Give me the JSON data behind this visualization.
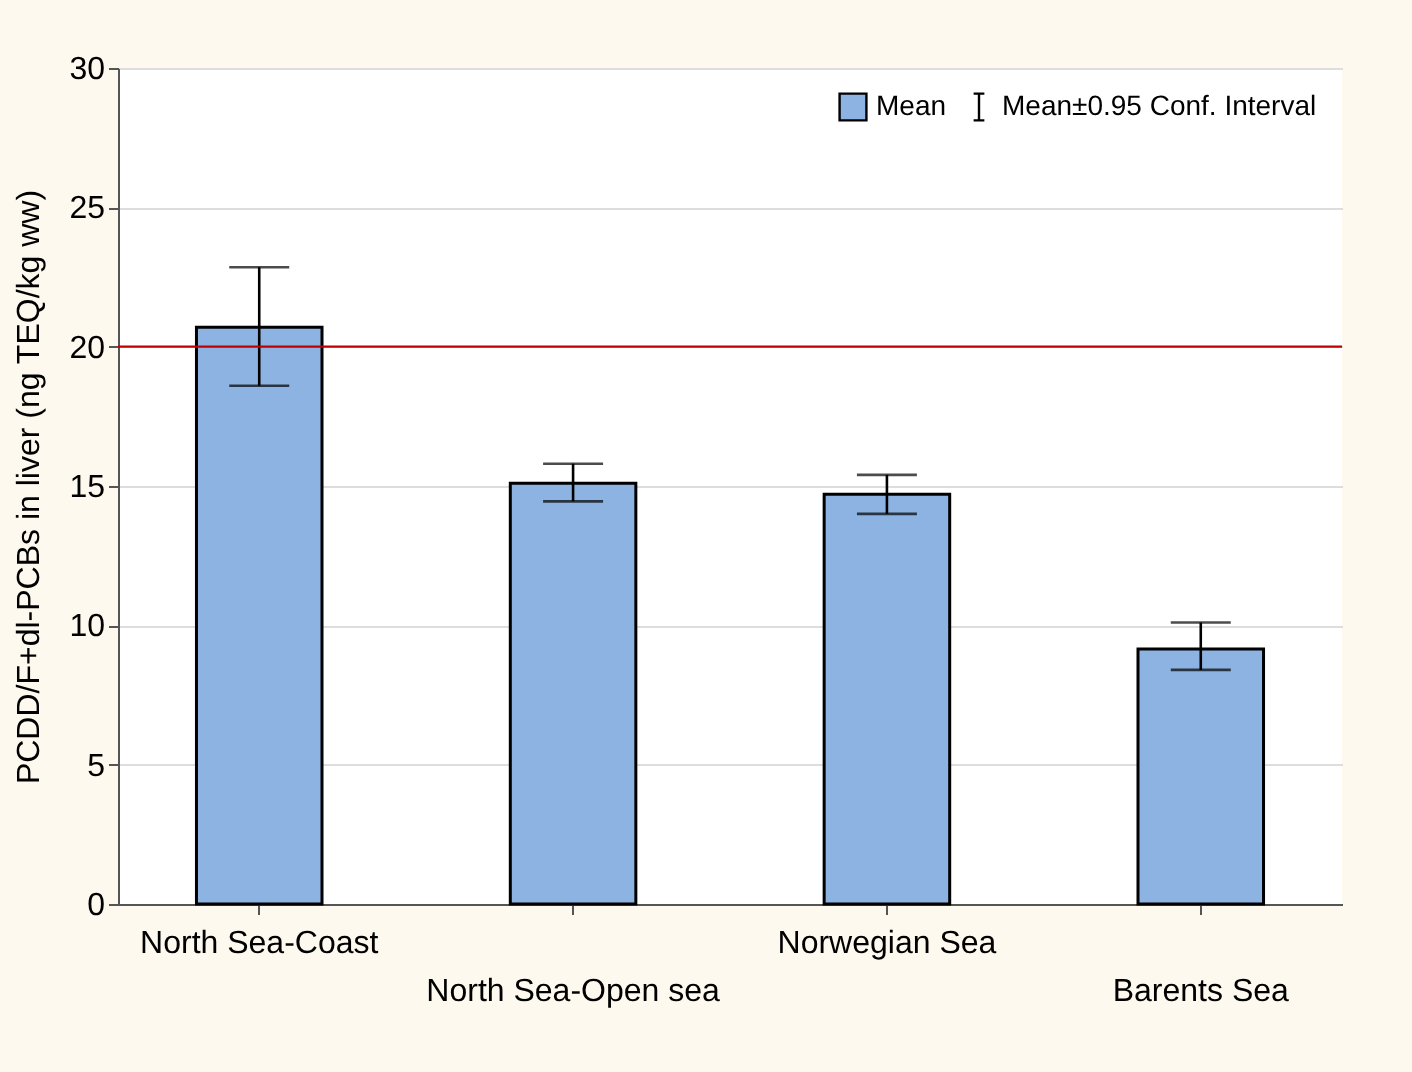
{
  "chart_data": {
    "type": "bar",
    "ylabel": "PCDD/F+dl-PCBs in liver (ng TEQ/kg ww)",
    "categories": [
      "North Sea-Coast",
      "North Sea-Open sea",
      "Norwegian Sea",
      "Barents Sea"
    ],
    "series": [
      {
        "name": "Mean",
        "color": "#8db3e2",
        "values": [
          20.7,
          15.1,
          14.7,
          9.15
        ],
        "errors": [
          [
            18.6,
            22.85
          ],
          [
            14.45,
            15.8
          ],
          [
            14.0,
            15.4
          ],
          [
            8.4,
            10.1
          ]
        ]
      }
    ],
    "ylim": [
      0,
      30
    ],
    "yticks": [
      0,
      5,
      10,
      15,
      20,
      25,
      30
    ],
    "grid": true,
    "legend": "top right",
    "ref_lines": [
      {
        "axis": "y",
        "value": 20,
        "color": "#c00000"
      }
    ],
    "annotations": [
      "Mean±0.95 Conf. Interval"
    ]
  }
}
